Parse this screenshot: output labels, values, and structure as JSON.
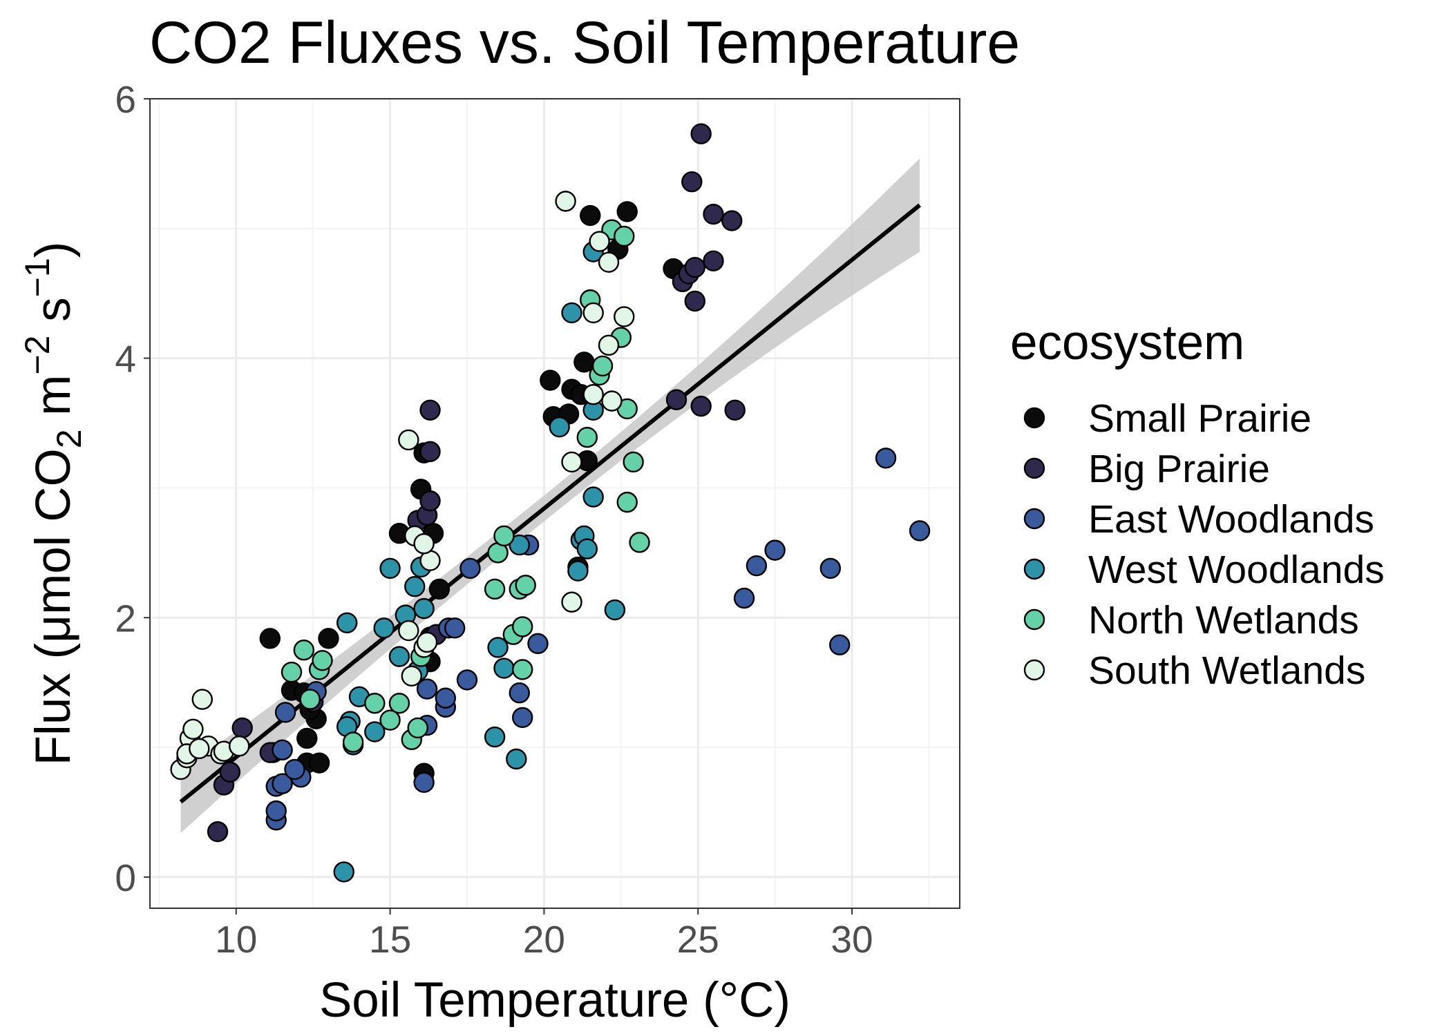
{
  "chart_data": {
    "type": "scatter",
    "title": "CO2 Fluxes vs. Soil Temperature",
    "xlabel": "Soil Temperature (°C)",
    "ylabel": {
      "prefix": "Flux (μmol CO",
      "co2_subscript": "2",
      "unit_m": " m",
      "m_exponent": "−2",
      "unit_s": " s",
      "s_exponent": "−1",
      "suffix": ")"
    },
    "xlim": [
      7.2,
      33.5
    ],
    "ylim": [
      -0.24,
      6.0
    ],
    "x_ticks": [
      10,
      15,
      20,
      25,
      30
    ],
    "y_ticks": [
      0,
      2,
      4,
      6
    ],
    "grid": true,
    "legend": {
      "title": "ecosystem",
      "position": "right",
      "entries": [
        {
          "label": "Small Prairie",
          "color": "#0b0b0b"
        },
        {
          "label": "Big Prairie",
          "color": "#2f2a4d"
        },
        {
          "label": "East Woodlands",
          "color": "#3a5a9e"
        },
        {
          "label": "West Woodlands",
          "color": "#2d93a8"
        },
        {
          "label": "North Wetlands",
          "color": "#64d1a8"
        },
        {
          "label": "South Wetlands",
          "color": "#e2f6e8"
        }
      ]
    },
    "trend_line": {
      "x": [
        8.2,
        32.2
      ],
      "y": [
        0.58,
        5.18
      ],
      "ci_lower": [
        0.34,
        4.83
      ],
      "ci_upper": [
        0.82,
        5.55
      ],
      "ci_mid_x": 20.0,
      "ci_mid_halfwidth": 0.1,
      "line_color": "#000000",
      "band_color": "#c8c8c8"
    },
    "series": [
      {
        "name": "Small Prairie",
        "points": [
          [
            11.1,
            1.84
          ],
          [
            13.0,
            1.84
          ],
          [
            11.8,
            1.44
          ],
          [
            12.2,
            1.42
          ],
          [
            12.6,
            1.22
          ],
          [
            12.4,
            1.29
          ],
          [
            12.3,
            0.88
          ],
          [
            12.7,
            0.88
          ],
          [
            12.3,
            1.07
          ],
          [
            11.2,
            0.96
          ],
          [
            16.1,
            0.8
          ],
          [
            16.0,
            2.99
          ],
          [
            16.1,
            3.27
          ],
          [
            16.4,
            2.65
          ],
          [
            16.3,
            1.85
          ],
          [
            16.3,
            1.66
          ],
          [
            15.3,
            2.65
          ],
          [
            16.6,
            2.22
          ],
          [
            20.2,
            3.83
          ],
          [
            20.3,
            3.55
          ],
          [
            20.8,
            3.57
          ],
          [
            20.9,
            3.76
          ],
          [
            21.2,
            3.72
          ],
          [
            21.3,
            3.97
          ],
          [
            21.4,
            3.21
          ],
          [
            21.1,
            2.39
          ],
          [
            21.5,
            5.1
          ],
          [
            22.4,
            4.84
          ],
          [
            22.7,
            5.13
          ],
          [
            24.2,
            4.69
          ]
        ]
      },
      {
        "name": "Big Prairie",
        "points": [
          [
            9.4,
            0.35
          ],
          [
            9.6,
            0.71
          ],
          [
            9.8,
            0.81
          ],
          [
            10.2,
            1.15
          ],
          [
            11.1,
            0.96
          ],
          [
            12.5,
            1.35
          ],
          [
            15.9,
            2.75
          ],
          [
            16.2,
            2.79
          ],
          [
            16.3,
            2.9
          ],
          [
            16.3,
            3.28
          ],
          [
            16.3,
            3.6
          ],
          [
            16.5,
            1.87
          ],
          [
            24.3,
            3.68
          ],
          [
            24.5,
            4.59
          ],
          [
            24.7,
            4.65
          ],
          [
            24.9,
            4.44
          ],
          [
            24.9,
            4.7
          ],
          [
            24.8,
            5.36
          ],
          [
            25.1,
            5.73
          ],
          [
            25.1,
            3.63
          ],
          [
            25.5,
            5.11
          ],
          [
            25.5,
            4.75
          ],
          [
            26.1,
            5.06
          ],
          [
            26.2,
            3.6
          ]
        ]
      },
      {
        "name": "East Woodlands",
        "points": [
          [
            11.3,
            0.44
          ],
          [
            11.3,
            0.51
          ],
          [
            11.3,
            0.7
          ],
          [
            11.5,
            0.72
          ],
          [
            11.5,
            0.98
          ],
          [
            11.6,
            1.27
          ],
          [
            12.1,
            0.77
          ],
          [
            16.1,
            0.73
          ],
          [
            16.2,
            1.17
          ],
          [
            16.2,
            1.45
          ],
          [
            16.8,
            1.31
          ],
          [
            16.8,
            1.38
          ],
          [
            16.9,
            1.92
          ],
          [
            17.1,
            1.92
          ],
          [
            17.5,
            1.52
          ],
          [
            17.6,
            2.38
          ],
          [
            19.2,
            1.42
          ],
          [
            19.3,
            1.23
          ],
          [
            19.5,
            2.56
          ],
          [
            19.8,
            1.8
          ],
          [
            26.5,
            2.15
          ],
          [
            26.9,
            2.4
          ],
          [
            27.5,
            2.52
          ],
          [
            29.3,
            2.38
          ],
          [
            29.6,
            1.79
          ],
          [
            31.1,
            3.23
          ],
          [
            32.2,
            2.67
          ],
          [
            11.9,
            0.83
          ],
          [
            12.6,
            1.43
          ]
        ]
      },
      {
        "name": "West Woodlands",
        "points": [
          [
            13.5,
            0.04
          ],
          [
            13.7,
            1.2
          ],
          [
            13.8,
            1.02
          ],
          [
            14.0,
            1.39
          ],
          [
            14.5,
            1.12
          ],
          [
            13.6,
            1.96
          ],
          [
            14.8,
            1.92
          ],
          [
            15.0,
            2.38
          ],
          [
            15.3,
            1.7
          ],
          [
            15.5,
            2.02
          ],
          [
            15.8,
            2.24
          ],
          [
            15.9,
            1.59
          ],
          [
            16.0,
            2.39
          ],
          [
            16.1,
            2.07
          ],
          [
            18.4,
            1.08
          ],
          [
            18.5,
            1.77
          ],
          [
            18.7,
            1.61
          ],
          [
            19.1,
            0.91
          ],
          [
            19.2,
            2.56
          ],
          [
            20.5,
            3.47
          ],
          [
            20.9,
            4.35
          ],
          [
            21.1,
            2.36
          ],
          [
            21.2,
            2.6
          ],
          [
            21.3,
            2.63
          ],
          [
            21.4,
            2.53
          ],
          [
            21.6,
            2.93
          ],
          [
            21.6,
            3.6
          ],
          [
            21.6,
            4.82
          ],
          [
            22.3,
            2.06
          ],
          [
            13.6,
            1.16
          ]
        ]
      },
      {
        "name": "North Wetlands",
        "points": [
          [
            11.8,
            1.58
          ],
          [
            12.2,
            1.75
          ],
          [
            12.4,
            1.37
          ],
          [
            12.7,
            1.6
          ],
          [
            12.8,
            1.67
          ],
          [
            13.8,
            1.04
          ],
          [
            14.5,
            1.34
          ],
          [
            15.0,
            1.21
          ],
          [
            15.3,
            1.34
          ],
          [
            15.7,
            1.06
          ],
          [
            15.9,
            1.15
          ],
          [
            16.0,
            1.7
          ],
          [
            18.4,
            2.22
          ],
          [
            18.5,
            2.5
          ],
          [
            18.7,
            2.63
          ],
          [
            19.0,
            1.87
          ],
          [
            19.2,
            2.22
          ],
          [
            19.3,
            1.93
          ],
          [
            19.4,
            2.25
          ],
          [
            19.3,
            1.6
          ],
          [
            21.4,
            3.39
          ],
          [
            21.5,
            4.45
          ],
          [
            21.8,
            3.87
          ],
          [
            21.9,
            3.94
          ],
          [
            22.2,
            4.99
          ],
          [
            22.5,
            4.16
          ],
          [
            22.6,
            4.94
          ],
          [
            22.7,
            3.61
          ],
          [
            22.7,
            2.89
          ],
          [
            22.9,
            3.2
          ],
          [
            23.1,
            2.58
          ]
        ]
      },
      {
        "name": "South Wetlands",
        "points": [
          [
            8.2,
            0.83
          ],
          [
            8.4,
            0.92
          ],
          [
            8.5,
            1.07
          ],
          [
            8.6,
            1.14
          ],
          [
            8.9,
            1.37
          ],
          [
            9.1,
            1.01
          ],
          [
            9.5,
            0.95
          ],
          [
            9.6,
            0.97
          ],
          [
            10.1,
            1.01
          ],
          [
            8.4,
            0.95
          ],
          [
            8.8,
            0.99
          ],
          [
            15.6,
            3.37
          ],
          [
            15.8,
            2.63
          ],
          [
            15.6,
            1.9
          ],
          [
            15.7,
            1.55
          ],
          [
            16.1,
            1.77
          ],
          [
            16.2,
            1.81
          ],
          [
            16.3,
            2.44
          ],
          [
            16.1,
            2.57
          ],
          [
            20.7,
            5.21
          ],
          [
            20.9,
            2.12
          ],
          [
            20.9,
            3.2
          ],
          [
            21.6,
            3.72
          ],
          [
            21.6,
            4.35
          ],
          [
            21.8,
            4.9
          ],
          [
            22.1,
            4.74
          ],
          [
            22.1,
            4.1
          ],
          [
            22.2,
            3.67
          ],
          [
            22.6,
            4.32
          ]
        ]
      }
    ]
  }
}
